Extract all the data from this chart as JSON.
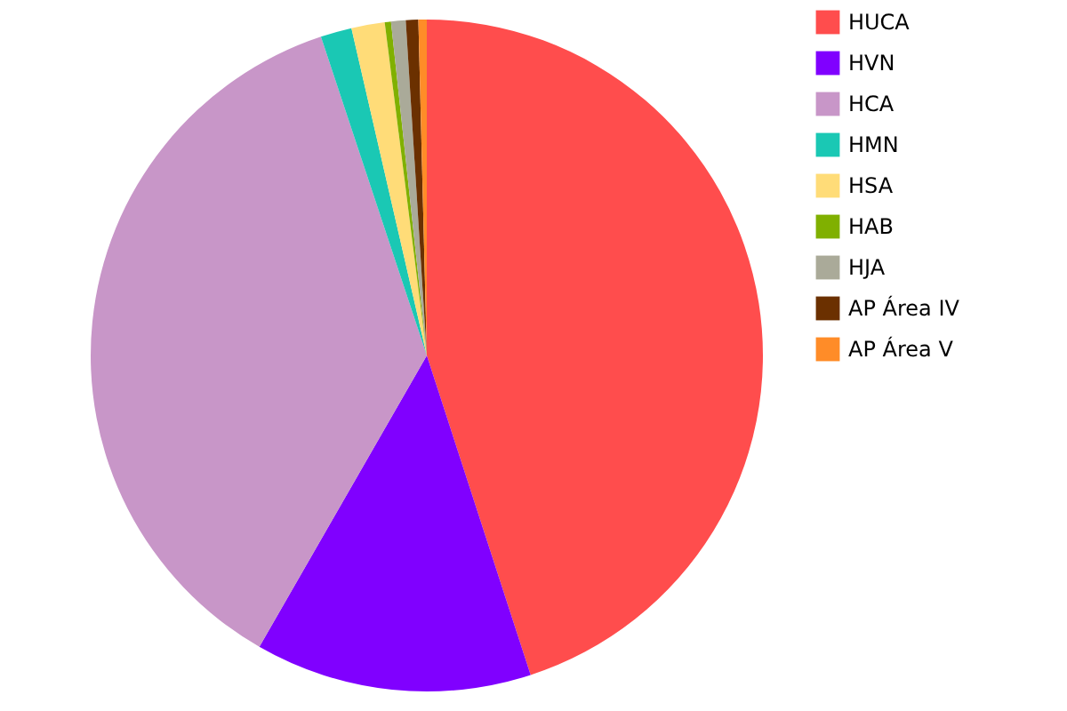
{
  "chart_data": {
    "type": "pie",
    "categories": [
      "HUCA",
      "HVN",
      "HCA",
      "HMN",
      "HSA",
      "HAB",
      "HJA",
      "AP Área IV",
      "AP Área V"
    ],
    "values": [
      45.0,
      13.3,
      36.6,
      1.5,
      1.6,
      0.3,
      0.7,
      0.6,
      0.4
    ],
    "colors": [
      "#ff4d4d",
      "#8000ff",
      "#c896c8",
      "#1ac8b4",
      "#ffdc78",
      "#80b000",
      "#aaaa99",
      "#6b3000",
      "#ff8c28"
    ],
    "legend": "right"
  }
}
